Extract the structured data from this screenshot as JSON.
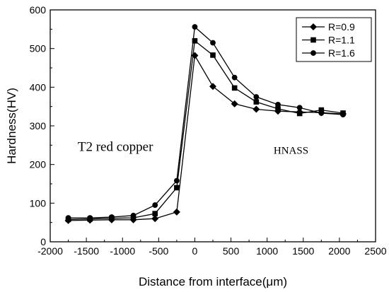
{
  "chart_data": {
    "type": "line",
    "title": "",
    "xlabel": "Distance from interface(μm)",
    "ylabel": "Hardness(HV)",
    "xlim": [
      -2000,
      2500
    ],
    "ylim": [
      0,
      600
    ],
    "xticks": [
      -2000,
      -1500,
      -1000,
      -500,
      0,
      500,
      1000,
      1500,
      2000,
      2500
    ],
    "yticks": [
      0,
      100,
      200,
      300,
      400,
      500,
      600
    ],
    "xtick_labels": [
      "-2000",
      "-1500",
      "-1000",
      "-500",
      "0",
      "500",
      "1000",
      "1500",
      "2000",
      "2500"
    ],
    "ytick_labels": [
      "0",
      "100",
      "200",
      "300",
      "400",
      "500",
      "600"
    ],
    "grid": false,
    "legend_position": "top-right",
    "series": [
      {
        "name": "R=0.9",
        "marker": "diamond",
        "x": [
          -1750,
          -1450,
          -1150,
          -850,
          -550,
          -250,
          0,
          250,
          550,
          850,
          1150,
          1450,
          1750,
          2050
        ],
        "y": [
          55,
          56,
          57,
          57,
          60,
          77,
          482,
          402,
          357,
          343,
          338,
          336,
          334,
          331
        ]
      },
      {
        "name": "R=1.1",
        "marker": "square",
        "x": [
          -1750,
          -1450,
          -1150,
          -850,
          -550,
          -250,
          0,
          250,
          550,
          850,
          1150,
          1450,
          1750,
          2050
        ],
        "y": [
          58,
          59,
          61,
          62,
          73,
          140,
          520,
          483,
          398,
          362,
          344,
          332,
          341,
          333
        ]
      },
      {
        "name": "R=1.6",
        "marker": "circle",
        "x": [
          -1750,
          -1450,
          -1150,
          -850,
          -550,
          -250,
          0,
          250,
          550,
          850,
          1150,
          1450,
          1750,
          2050
        ],
        "y": [
          62,
          62,
          64,
          68,
          95,
          158,
          556,
          515,
          425,
          375,
          355,
          347,
          333,
          329
        ]
      }
    ],
    "annotations": [
      {
        "text": "T2 red copper",
        "x": -1620,
        "y": 235
      },
      {
        "text": "HNASS",
        "x": 1090,
        "y": 228
      }
    ],
    "colors": {
      "line": "#000000",
      "background": "#ffffff"
    }
  }
}
